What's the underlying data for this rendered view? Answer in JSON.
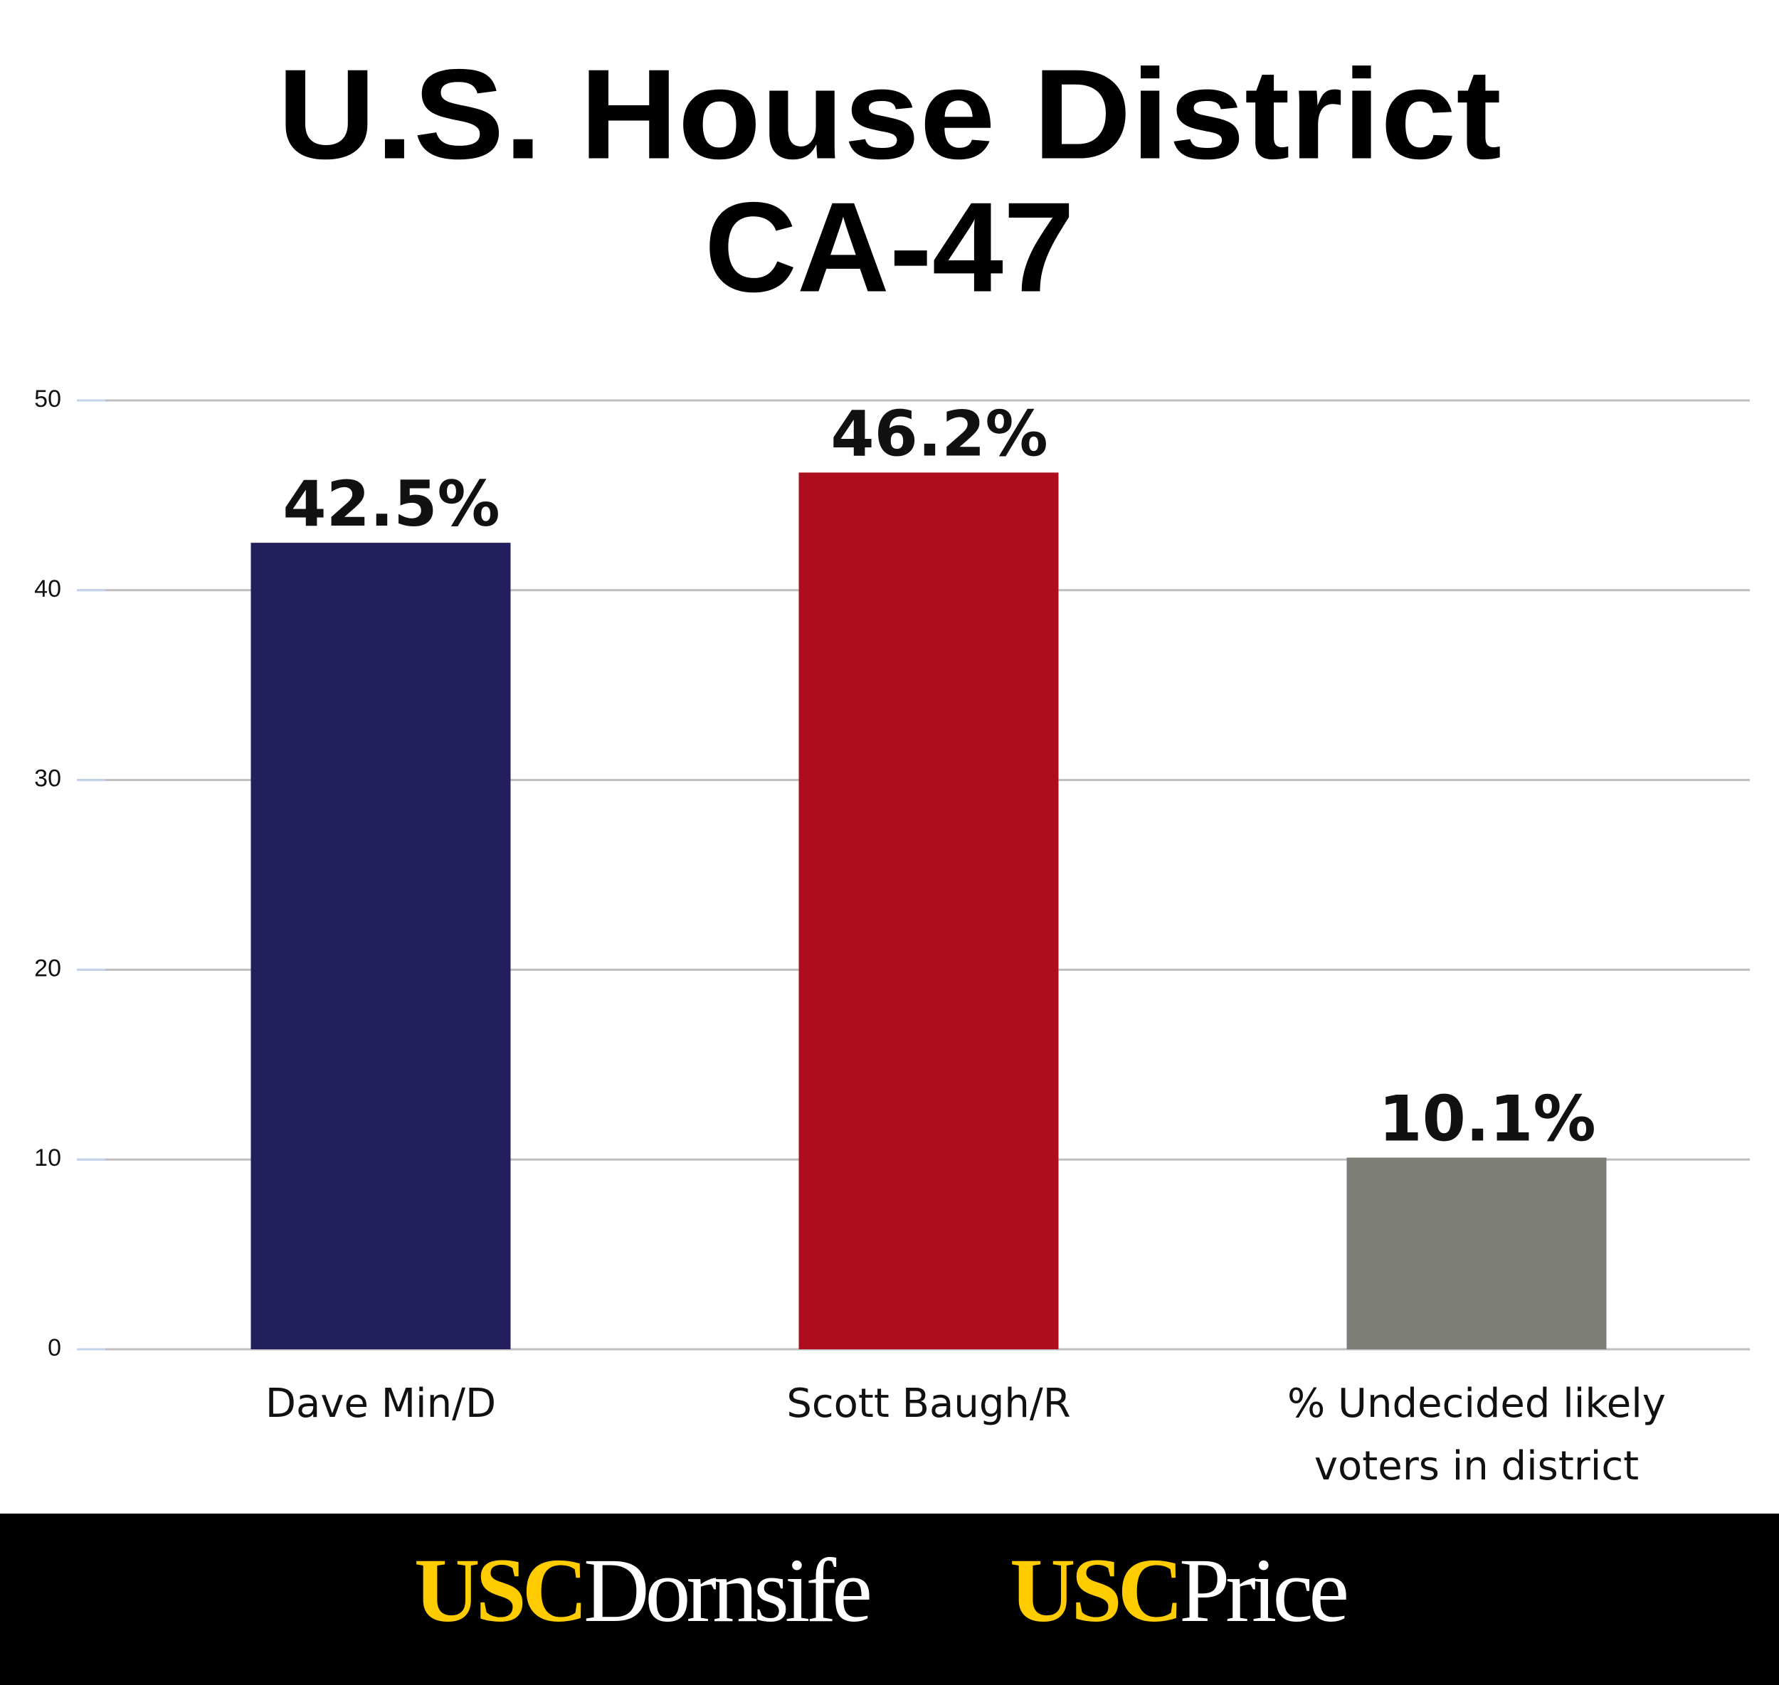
{
  "chart_data": {
    "type": "bar",
    "title": [
      "U.S. House District",
      "CA-47"
    ],
    "categories": [
      "Dave Min/D",
      "Scott Baugh/R",
      "% Undecided likely voters in district"
    ],
    "values": [
      42.5,
      46.2,
      10.1
    ],
    "value_labels": [
      "42.5%",
      "46.2%",
      "10.1%"
    ],
    "colors": [
      "#231f5c",
      "#ad0e1e",
      "#7d7e76"
    ],
    "ylim": [
      0,
      50
    ],
    "yticks": [
      0,
      10,
      20,
      30,
      40,
      50
    ],
    "grid": true
  },
  "footer": {
    "logos": [
      [
        "USC",
        "Dornsife"
      ],
      [
        "USC",
        "Price"
      ]
    ]
  }
}
